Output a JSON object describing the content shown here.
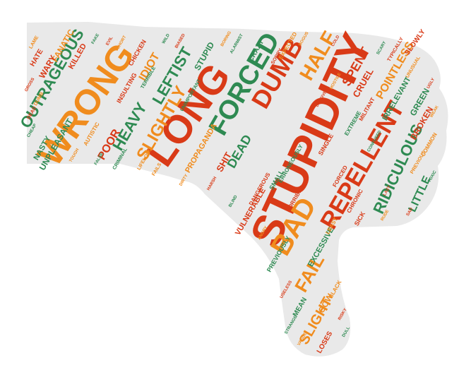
{
  "colors": {
    "background": "#ffffff",
    "shape_fill": "#e9e9e9",
    "red": "#d93a17",
    "orange": "#f08c1e",
    "green": "#2e8a52"
  },
  "shape": "thumbs-down",
  "words": [
    {
      "text": "STUPIDITY",
      "color": "red",
      "weight": 10
    },
    {
      "text": "LONG",
      "color": "red",
      "weight": 9
    },
    {
      "text": "WRONG",
      "color": "orange",
      "weight": 9
    },
    {
      "text": "FORCED",
      "color": "green",
      "weight": 7
    },
    {
      "text": "REPELLENT",
      "color": "red",
      "weight": 7
    },
    {
      "text": "DUMB",
      "color": "red",
      "weight": 7
    },
    {
      "text": "BAD",
      "color": "orange",
      "weight": 7
    },
    {
      "text": "HALF",
      "color": "orange",
      "weight": 6
    },
    {
      "text": "SLIGHTLY",
      "color": "orange",
      "weight": 6
    },
    {
      "text": "OUTRAGEOUS",
      "color": "green",
      "weight": 6
    },
    {
      "text": "RIDICULOUS",
      "color": "green",
      "weight": 5
    },
    {
      "text": "FAIL",
      "color": "orange",
      "weight": 5
    },
    {
      "text": "HEAVY",
      "color": "green",
      "weight": 5
    },
    {
      "text": "LEFTIST",
      "color": "green",
      "weight": 5
    },
    {
      "text": "SPENT",
      "color": "red",
      "weight": 4
    },
    {
      "text": "POINTLESS",
      "color": "orange",
      "weight": 4
    },
    {
      "text": "IDIOT",
      "color": "orange",
      "weight": 4
    },
    {
      "text": "DEAD",
      "color": "green",
      "weight": 4
    },
    {
      "text": "LITTLE",
      "color": "green",
      "weight": 4
    },
    {
      "text": "POOR",
      "color": "red",
      "weight": 4
    },
    {
      "text": "SLIGHT",
      "color": "orange",
      "weight": 4
    },
    {
      "text": "FANATIC",
      "color": "orange",
      "weight": 3
    },
    {
      "text": "UNPLEASANT",
      "color": "green",
      "weight": 3
    },
    {
      "text": "WARY",
      "color": "red",
      "weight": 3
    },
    {
      "text": "SHIT",
      "color": "red",
      "weight": 3
    },
    {
      "text": "STUPID",
      "color": "green",
      "weight": 3
    },
    {
      "text": "CRUEL",
      "color": "red",
      "weight": 3
    },
    {
      "text": "BROKEN",
      "color": "red",
      "weight": 3
    },
    {
      "text": "GREEN",
      "color": "green",
      "weight": 3
    },
    {
      "text": "IRRELEVANT",
      "color": "green",
      "weight": 3
    },
    {
      "text": "PROPAGANDA",
      "color": "orange",
      "weight": 3
    },
    {
      "text": "VULNERABLE",
      "color": "red",
      "weight": 3
    },
    {
      "text": "EXCESSIVE",
      "color": "green",
      "weight": 3
    },
    {
      "text": "NASTY",
      "color": "green",
      "weight": 3
    },
    {
      "text": "KILLED",
      "color": "red",
      "weight": 3
    },
    {
      "text": "CRAZY",
      "color": "green",
      "weight": 2
    },
    {
      "text": "HATE",
      "color": "red",
      "weight": 2
    },
    {
      "text": "SLOWLY",
      "color": "red",
      "weight": 2
    },
    {
      "text": "COW",
      "color": "orange",
      "weight": 2
    },
    {
      "text": "MEAN",
      "color": "green",
      "weight": 2
    },
    {
      "text": "LOSES",
      "color": "red",
      "weight": 2
    },
    {
      "text": "SICK",
      "color": "red",
      "weight": 2
    },
    {
      "text": "SMALL",
      "color": "green",
      "weight": 2
    },
    {
      "text": "SINGLE",
      "color": "red",
      "weight": 2
    },
    {
      "text": "CHICKEN",
      "color": "red",
      "weight": 2
    },
    {
      "text": "INSULTING",
      "color": "red",
      "weight": 2
    },
    {
      "text": "AUTISTIC",
      "color": "orange",
      "weight": 2
    },
    {
      "text": "HORRIBLE",
      "color": "red",
      "weight": 2
    },
    {
      "text": "PREVIOUSLY",
      "color": "green",
      "weight": 2
    },
    {
      "text": "EXTREME",
      "color": "green",
      "weight": 2
    },
    {
      "text": "MILITANT",
      "color": "red",
      "weight": 2
    },
    {
      "text": "FORCED",
      "color": "red",
      "weight": 2
    },
    {
      "text": "EXPECTED",
      "color": "orange",
      "weight": 2
    },
    {
      "text": "DANGEROUS",
      "color": "red",
      "weight": 2
    },
    {
      "text": "ERRONEOUSLY",
      "color": "green",
      "weight": 2
    },
    {
      "text": "LEAST",
      "color": "orange",
      "weight": 2
    },
    {
      "text": "BLACK",
      "color": "orange",
      "weight": 2
    },
    {
      "text": "COMMON",
      "color": "orange",
      "weight": 2
    },
    {
      "text": "CHRONIC",
      "color": "red",
      "weight": 2
    },
    {
      "text": "UNIMPORTANT",
      "color": "green",
      "weight": 2
    },
    {
      "text": "FAILS",
      "color": "orange",
      "weight": 2
    },
    {
      "text": "LIFELONG",
      "color": "orange",
      "weight": 2
    },
    {
      "text": "CRIMINAL",
      "color": "green",
      "weight": 2
    },
    {
      "text": "LAME",
      "color": "orange",
      "weight": 1
    },
    {
      "text": "DUMB",
      "color": "orange",
      "weight": 1
    },
    {
      "text": "SORRY",
      "color": "red",
      "weight": 1
    },
    {
      "text": "TYPICALLY",
      "color": "red",
      "weight": 1
    },
    {
      "text": "PREVIOUS",
      "color": "orange",
      "weight": 1
    },
    {
      "text": "TERRIBLE",
      "color": "green",
      "weight": 1
    },
    {
      "text": "DEAD",
      "color": "red",
      "weight": 1
    },
    {
      "text": "UNUSUAL",
      "color": "orange",
      "weight": 1
    },
    {
      "text": "FAKE",
      "color": "green",
      "weight": 1
    },
    {
      "text": "EVIL",
      "color": "red",
      "weight": 1
    },
    {
      "text": "SHORT",
      "color": "orange",
      "weight": 1
    },
    {
      "text": "WILD",
      "color": "green",
      "weight": 1
    },
    {
      "text": "BIASED",
      "color": "red",
      "weight": 1
    },
    {
      "text": "BORING",
      "color": "orange",
      "weight": 1
    },
    {
      "text": "ALARMIST",
      "color": "green",
      "weight": 1
    },
    {
      "text": "BOGUS",
      "color": "orange",
      "weight": 1
    },
    {
      "text": "COLD",
      "color": "red",
      "weight": 1
    },
    {
      "text": "SCARY",
      "color": "green",
      "weight": 1
    },
    {
      "text": "UGLY",
      "color": "red",
      "weight": 1
    },
    {
      "text": "WEAK",
      "color": "orange",
      "weight": 1
    },
    {
      "text": "TOXIC",
      "color": "green",
      "weight": 1
    },
    {
      "text": "SAD",
      "color": "red",
      "weight": 1
    },
    {
      "text": "RUDE",
      "color": "orange",
      "weight": 1
    },
    {
      "text": "DULL",
      "color": "green",
      "weight": 1
    },
    {
      "text": "RISKY",
      "color": "red",
      "weight": 1
    },
    {
      "text": "VAGUE",
      "color": "orange",
      "weight": 1
    },
    {
      "text": "STRANGE",
      "color": "green",
      "weight": 1
    },
    {
      "text": "USELESS",
      "color": "red",
      "weight": 1
    },
    {
      "text": "ANGRY",
      "color": "orange",
      "weight": 1
    },
    {
      "text": "BLIND",
      "color": "green",
      "weight": 1
    },
    {
      "text": "HARSH",
      "color": "red",
      "weight": 1
    },
    {
      "text": "DIRTY",
      "color": "orange",
      "weight": 1
    },
    {
      "text": "CHEAP",
      "color": "green",
      "weight": 1
    },
    {
      "text": "GROSS",
      "color": "red",
      "weight": 1
    },
    {
      "text": "TOUGH",
      "color": "orange",
      "weight": 1
    },
    {
      "text": "FALSE",
      "color": "green",
      "weight": 1
    },
    {
      "text": "DIVISIVE",
      "color": "red",
      "weight": 1
    },
    {
      "text": "HOSTILE",
      "color": "orange",
      "weight": 1
    },
    {
      "text": "CONFUSED",
      "color": "green",
      "weight": 1
    },
    {
      "text": "LAZY",
      "color": "red",
      "weight": 1
    }
  ]
}
